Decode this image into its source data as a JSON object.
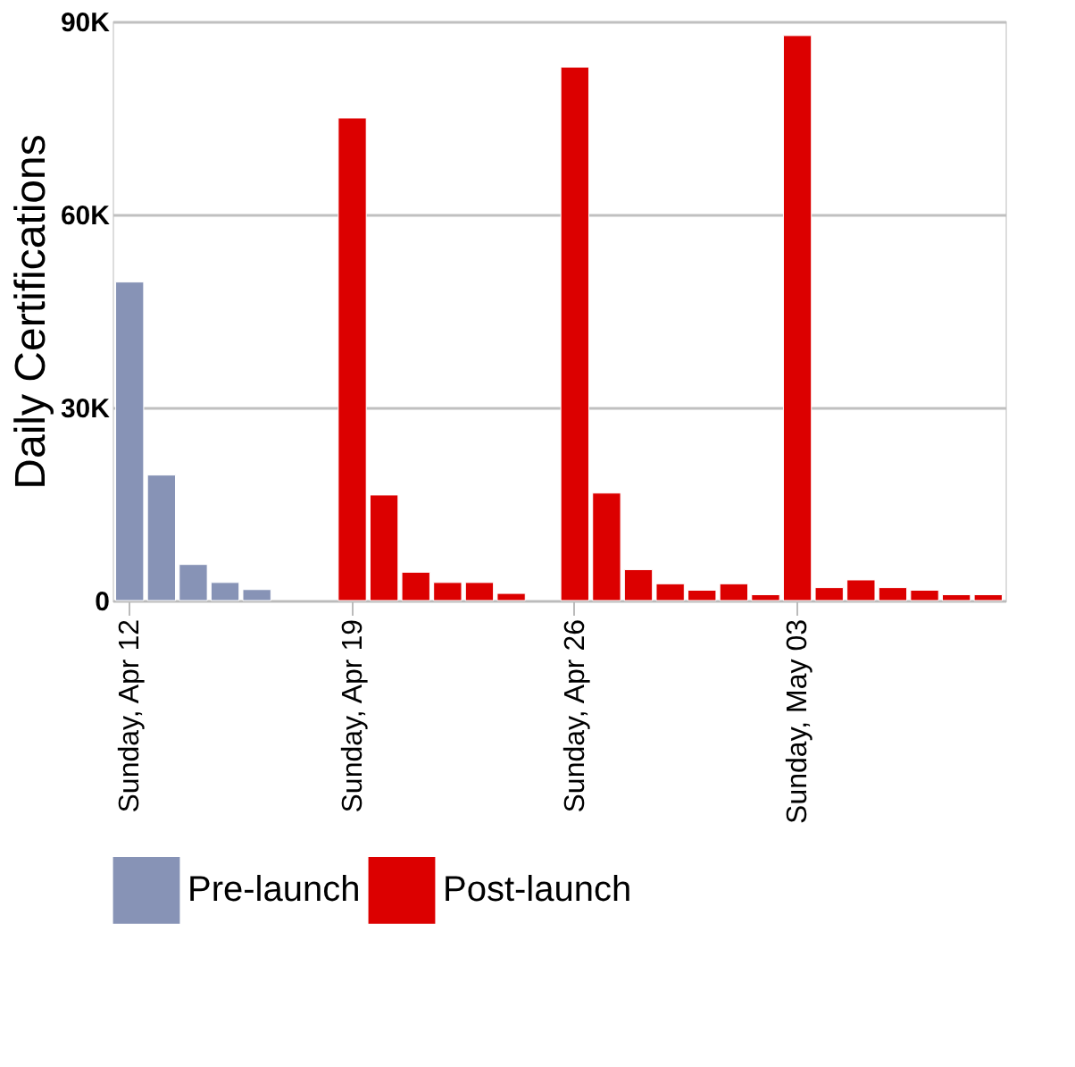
{
  "chart_data": {
    "type": "bar",
    "ylabel": "Daily Certifications",
    "categories": [
      "Sunday, Apr 12",
      null,
      null,
      null,
      null,
      null,
      null,
      "Sunday, Apr 19",
      null,
      null,
      null,
      null,
      null,
      null,
      "Sunday, Apr 26",
      null,
      null,
      null,
      null,
      null,
      null,
      "Sunday, May 03",
      null,
      null,
      null,
      null,
      null,
      null
    ],
    "series": [
      {
        "name": "Pre-launch",
        "color": "#8793b6",
        "values": [
          49500,
          19500,
          5600,
          2800,
          1700,
          null,
          null,
          null,
          null,
          null,
          null,
          null,
          null,
          null,
          null,
          null,
          null,
          null,
          null,
          null,
          null,
          null,
          null,
          null,
          null,
          null,
          null,
          null
        ]
      },
      {
        "name": "Post-launch",
        "color": "#dc0000",
        "values": [
          null,
          null,
          null,
          null,
          null,
          null,
          null,
          75000,
          16400,
          4400,
          2800,
          2800,
          1100,
          null,
          82900,
          16700,
          4800,
          2600,
          1600,
          2600,
          900,
          87800,
          2000,
          3200,
          2000,
          1600,
          900,
          900
        ]
      }
    ],
    "ylim": [
      0,
      90000
    ],
    "yticks": [
      {
        "value": 0,
        "label": "0"
      },
      {
        "value": 30000,
        "label": "30K"
      },
      {
        "value": 60000,
        "label": "60K"
      },
      {
        "value": 90000,
        "label": "90K"
      }
    ],
    "grid": "y",
    "legend": "bottom"
  }
}
